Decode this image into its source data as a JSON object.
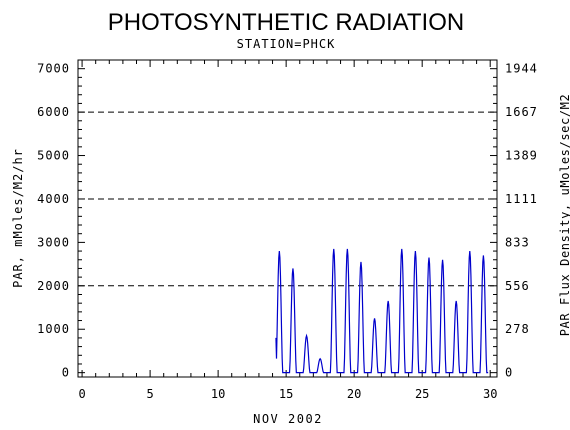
{
  "chart_data": {
    "type": "line",
    "title": "PHOTOSYNTHETIC RADIATION",
    "subtitle": "STATION=PHCK",
    "xlabel": "NOV 2002",
    "ylabel": "PAR, mMoles/M2/hr",
    "ylabel_right": "PAR Flux Density, uMoles/sec/M2",
    "xlim": [
      -0.3,
      30.5
    ],
    "ylim": [
      -100,
      7200
    ],
    "x_ticks": [
      "0",
      "5",
      "10",
      "15",
      "20",
      "25",
      "30"
    ],
    "x_tick_values": [
      0,
      5,
      10,
      15,
      20,
      25,
      30
    ],
    "y_ticks": [
      "0",
      "1000",
      "2000",
      "3000",
      "4000",
      "5000",
      "6000",
      "7000"
    ],
    "y_tick_values": [
      0,
      1000,
      2000,
      3000,
      4000,
      5000,
      6000,
      7000
    ],
    "y_ticks_right": [
      "0",
      "278",
      "556",
      "833",
      "1111",
      "1389",
      "1667",
      "1944"
    ],
    "y_tick_values_right": [
      0,
      1000,
      2000,
      3000,
      4000,
      5000,
      6000,
      7000
    ],
    "grid_lines": [
      2000,
      4000,
      6000
    ],
    "line_color": "#0000cc",
    "daily_peaks": [
      {
        "day": 14,
        "peak": 2800
      },
      {
        "day": 15,
        "peak": 2400
      },
      {
        "day": 16,
        "peak": 850
      },
      {
        "day": 17,
        "peak": 320
      },
      {
        "day": 18,
        "peak": 2850
      },
      {
        "day": 19,
        "peak": 2850
      },
      {
        "day": 20,
        "peak": 2550
      },
      {
        "day": 21,
        "peak": 1250
      },
      {
        "day": 22,
        "peak": 1650
      },
      {
        "day": 23,
        "peak": 2850
      },
      {
        "day": 24,
        "peak": 2800
      },
      {
        "day": 25,
        "peak": 2650
      },
      {
        "day": 26,
        "peak": 2600
      },
      {
        "day": 27,
        "peak": 1650
      },
      {
        "day": 28,
        "peak": 2800
      },
      {
        "day": 29,
        "peak": 2700
      }
    ]
  }
}
